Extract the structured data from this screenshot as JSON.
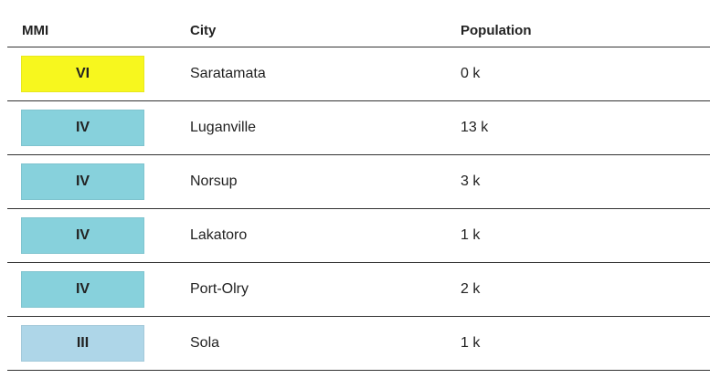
{
  "headers": {
    "mmi": "MMI",
    "city": "City",
    "population": "Population"
  },
  "rows": [
    {
      "mmi": "VI",
      "city": "Saratamata",
      "population": "0 k",
      "color": "#f7f71e"
    },
    {
      "mmi": "IV",
      "city": "Luganville",
      "population": "13 k",
      "color": "#87d1dc"
    },
    {
      "mmi": "IV",
      "city": "Norsup",
      "population": "3 k",
      "color": "#87d1dc"
    },
    {
      "mmi": "IV",
      "city": "Lakatoro",
      "population": "1 k",
      "color": "#87d1dc"
    },
    {
      "mmi": "IV",
      "city": "Port-Olry",
      "population": "2 k",
      "color": "#87d1dc"
    },
    {
      "mmi": "III",
      "city": "Sola",
      "population": "1 k",
      "color": "#aed6e8"
    }
  ]
}
